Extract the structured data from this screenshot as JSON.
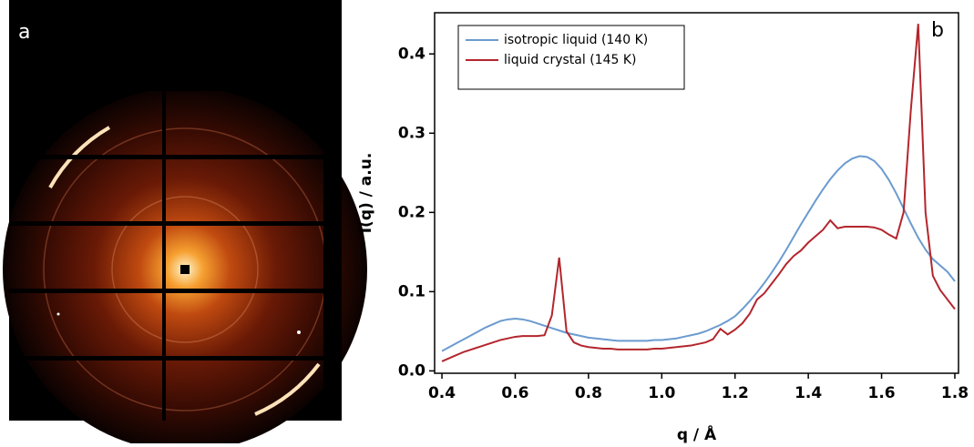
{
  "panel_labels": [
    "a",
    "b"
  ],
  "chart_data": {
    "type": "line",
    "x_label": "q / Å",
    "y_label": "I(q) / a.u.",
    "xlim": [
      0.38,
      1.81
    ],
    "ylim": [
      -0.003,
      0.452
    ],
    "xticks": [
      0.4,
      0.6,
      0.8,
      {
        "value": 1,
        "label": "1.0"
      },
      1.2,
      1.4,
      1.6,
      1.8
    ],
    "yticks": [
      {
        "value": 0,
        "label": "0.0"
      },
      0.1,
      0.2,
      0.3,
      0.4
    ],
    "legend": "upper left",
    "x": [
      0.4,
      0.42,
      0.44,
      0.46,
      0.48,
      0.5,
      0.52,
      0.54,
      0.56,
      0.58,
      0.6,
      0.62,
      0.64,
      0.66,
      0.68,
      0.7,
      0.72,
      0.74,
      0.76,
      0.78,
      0.8,
      0.82,
      0.84,
      0.86,
      0.88,
      0.9,
      0.92,
      0.94,
      0.96,
      0.98,
      1,
      1.02,
      1.04,
      1.06,
      1.08,
      1.1,
      1.12,
      1.14,
      1.16,
      1.18,
      1.2,
      1.22,
      1.24,
      1.26,
      1.28,
      1.3,
      1.32,
      1.34,
      1.36,
      1.38,
      1.4,
      1.42,
      1.44,
      1.46,
      1.48,
      1.5,
      1.52,
      1.54,
      1.56,
      1.58,
      1.6,
      1.62,
      1.64,
      1.66,
      1.68,
      1.7,
      1.72,
      1.74,
      1.76,
      1.78,
      1.8
    ],
    "series": [
      {
        "name": "isotropic liquid (140 K)",
        "color": "#6b9bcf",
        "values": [
          0.025,
          0.03,
          0.035,
          0.04,
          0.045,
          0.05,
          0.055,
          0.059,
          0.063,
          0.065,
          0.066,
          0.065,
          0.063,
          0.06,
          0.057,
          0.054,
          0.051,
          0.048,
          0.046,
          0.044,
          0.042,
          0.041,
          0.04,
          0.039,
          0.038,
          0.038,
          0.038,
          0.038,
          0.038,
          0.039,
          0.039,
          0.04,
          0.041,
          0.043,
          0.045,
          0.047,
          0.05,
          0.054,
          0.058,
          0.063,
          0.069,
          0.078,
          0.088,
          0.099,
          0.111,
          0.124,
          0.138,
          0.153,
          0.169,
          0.185,
          0.2,
          0.215,
          0.229,
          0.242,
          0.253,
          0.262,
          0.268,
          0.271,
          0.27,
          0.265,
          0.255,
          0.241,
          0.224,
          0.205,
          0.186,
          0.168,
          0.153,
          0.141,
          0.133,
          0.125,
          0.113
        ]
      },
      {
        "name": "liquid crystal (145 K)",
        "color": "#b3262d",
        "values": [
          0.012,
          0.016,
          0.02,
          0.024,
          0.027,
          0.03,
          0.033,
          0.036,
          0.039,
          0.041,
          0.043,
          0.044,
          0.044,
          0.044,
          0.045,
          0.07,
          0.143,
          0.05,
          0.036,
          0.032,
          0.03,
          0.029,
          0.028,
          0.028,
          0.027,
          0.027,
          0.027,
          0.027,
          0.027,
          0.028,
          0.028,
          0.029,
          0.03,
          0.031,
          0.032,
          0.034,
          0.036,
          0.04,
          0.053,
          0.046,
          0.052,
          0.06,
          0.072,
          0.09,
          0.098,
          0.11,
          0.122,
          0.135,
          0.145,
          0.152,
          0.162,
          0.17,
          0.178,
          0.19,
          0.18,
          0.182,
          0.182,
          0.182,
          0.182,
          0.181,
          0.178,
          0.172,
          0.167,
          0.2,
          0.33,
          0.438,
          0.2,
          0.12,
          0.102,
          0.09,
          0.078
        ]
      }
    ]
  }
}
